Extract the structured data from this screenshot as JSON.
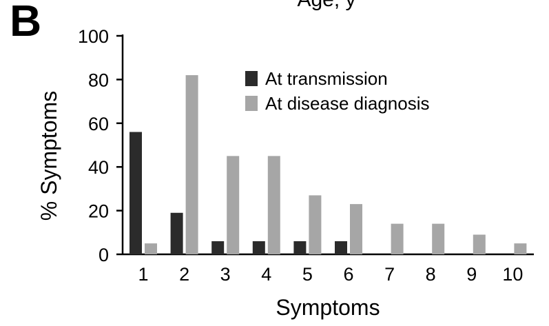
{
  "panel_label": "B",
  "top_caption": "Age, y",
  "colors": {
    "series_transmission": "#2b2b2b",
    "series_diagnosis": "#a6a6a6",
    "axis": "#000000",
    "background": "#ffffff"
  },
  "chart_data": {
    "type": "bar",
    "title": "",
    "xlabel": "Symptoms",
    "ylabel": "% Symptoms",
    "ylim": [
      0,
      100
    ],
    "yticks": [
      "0",
      "20",
      "40",
      "60",
      "80",
      "100"
    ],
    "ytick_values": [
      0,
      20,
      40,
      60,
      80,
      100
    ],
    "categories": [
      "1",
      "2",
      "3",
      "4",
      "5",
      "6",
      "7",
      "8",
      "9",
      "10"
    ],
    "legend_position": "top-center",
    "grid": false,
    "series": [
      {
        "name": "At transmission",
        "values": [
          56,
          19,
          6,
          6,
          6,
          6,
          0,
          0,
          0,
          0
        ]
      },
      {
        "name": "At disease diagnosis",
        "values": [
          5,
          82,
          45,
          45,
          27,
          23,
          14,
          14,
          9,
          5
        ]
      }
    ]
  }
}
